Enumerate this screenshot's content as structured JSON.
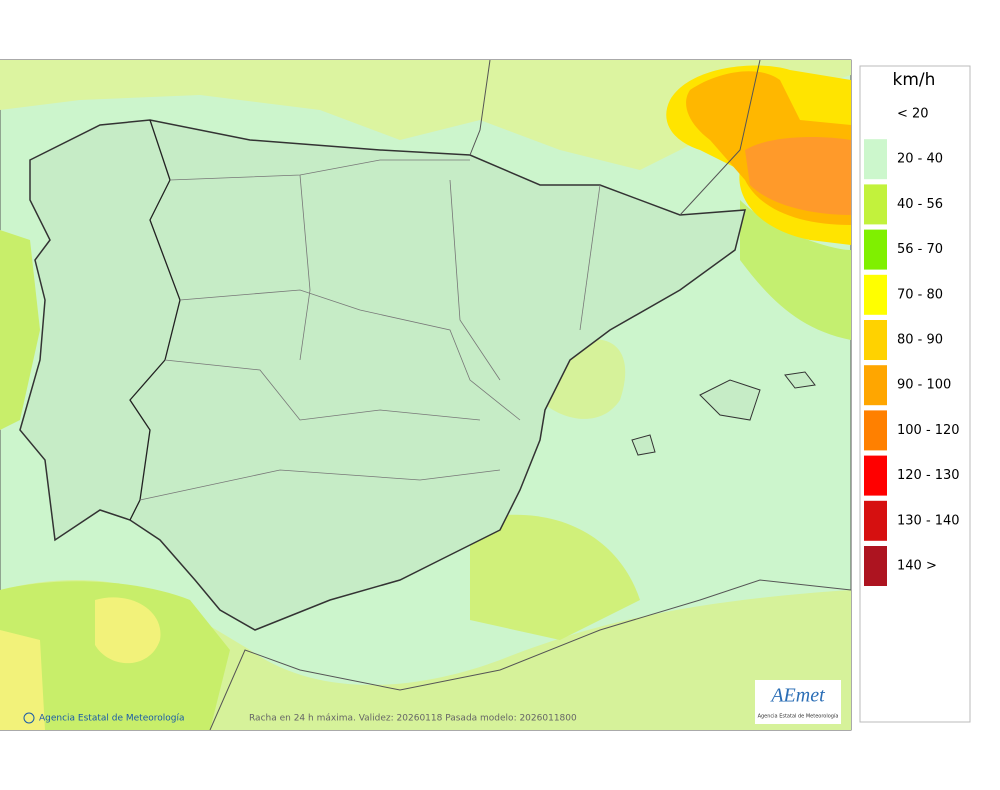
{
  "legend": {
    "title": "km/h",
    "items": [
      {
        "label": "< 20",
        "color": "#ffffff"
      },
      {
        "label": "20 - 40",
        "color": "#ccf7cc"
      },
      {
        "label": "40 - 56",
        "color": "#c2f23c"
      },
      {
        "label": "56 - 70",
        "color": "#7ff000"
      },
      {
        "label": "70 - 80",
        "color": "#ffff00"
      },
      {
        "label": "80 - 90",
        "color": "#ffd200"
      },
      {
        "label": "90 - 100",
        "color": "#ffa600"
      },
      {
        "label": "100 - 120",
        "color": "#ff8000"
      },
      {
        "label": "120 - 130",
        "color": "#ff0000"
      },
      {
        "label": "130 - 140",
        "color": "#d61010"
      },
      {
        "label": "140 >",
        "color": "#ad1420"
      }
    ]
  },
  "footer": {
    "credit": "Agencia Estatal de Meteorología",
    "caption": "Racha en 24 h máxima. Validez: 20260118 Pasada modelo: 2026011800"
  },
  "logo": {
    "name": "AEmet",
    "subtitle": "Agencia Estatal de Meteorología"
  }
}
